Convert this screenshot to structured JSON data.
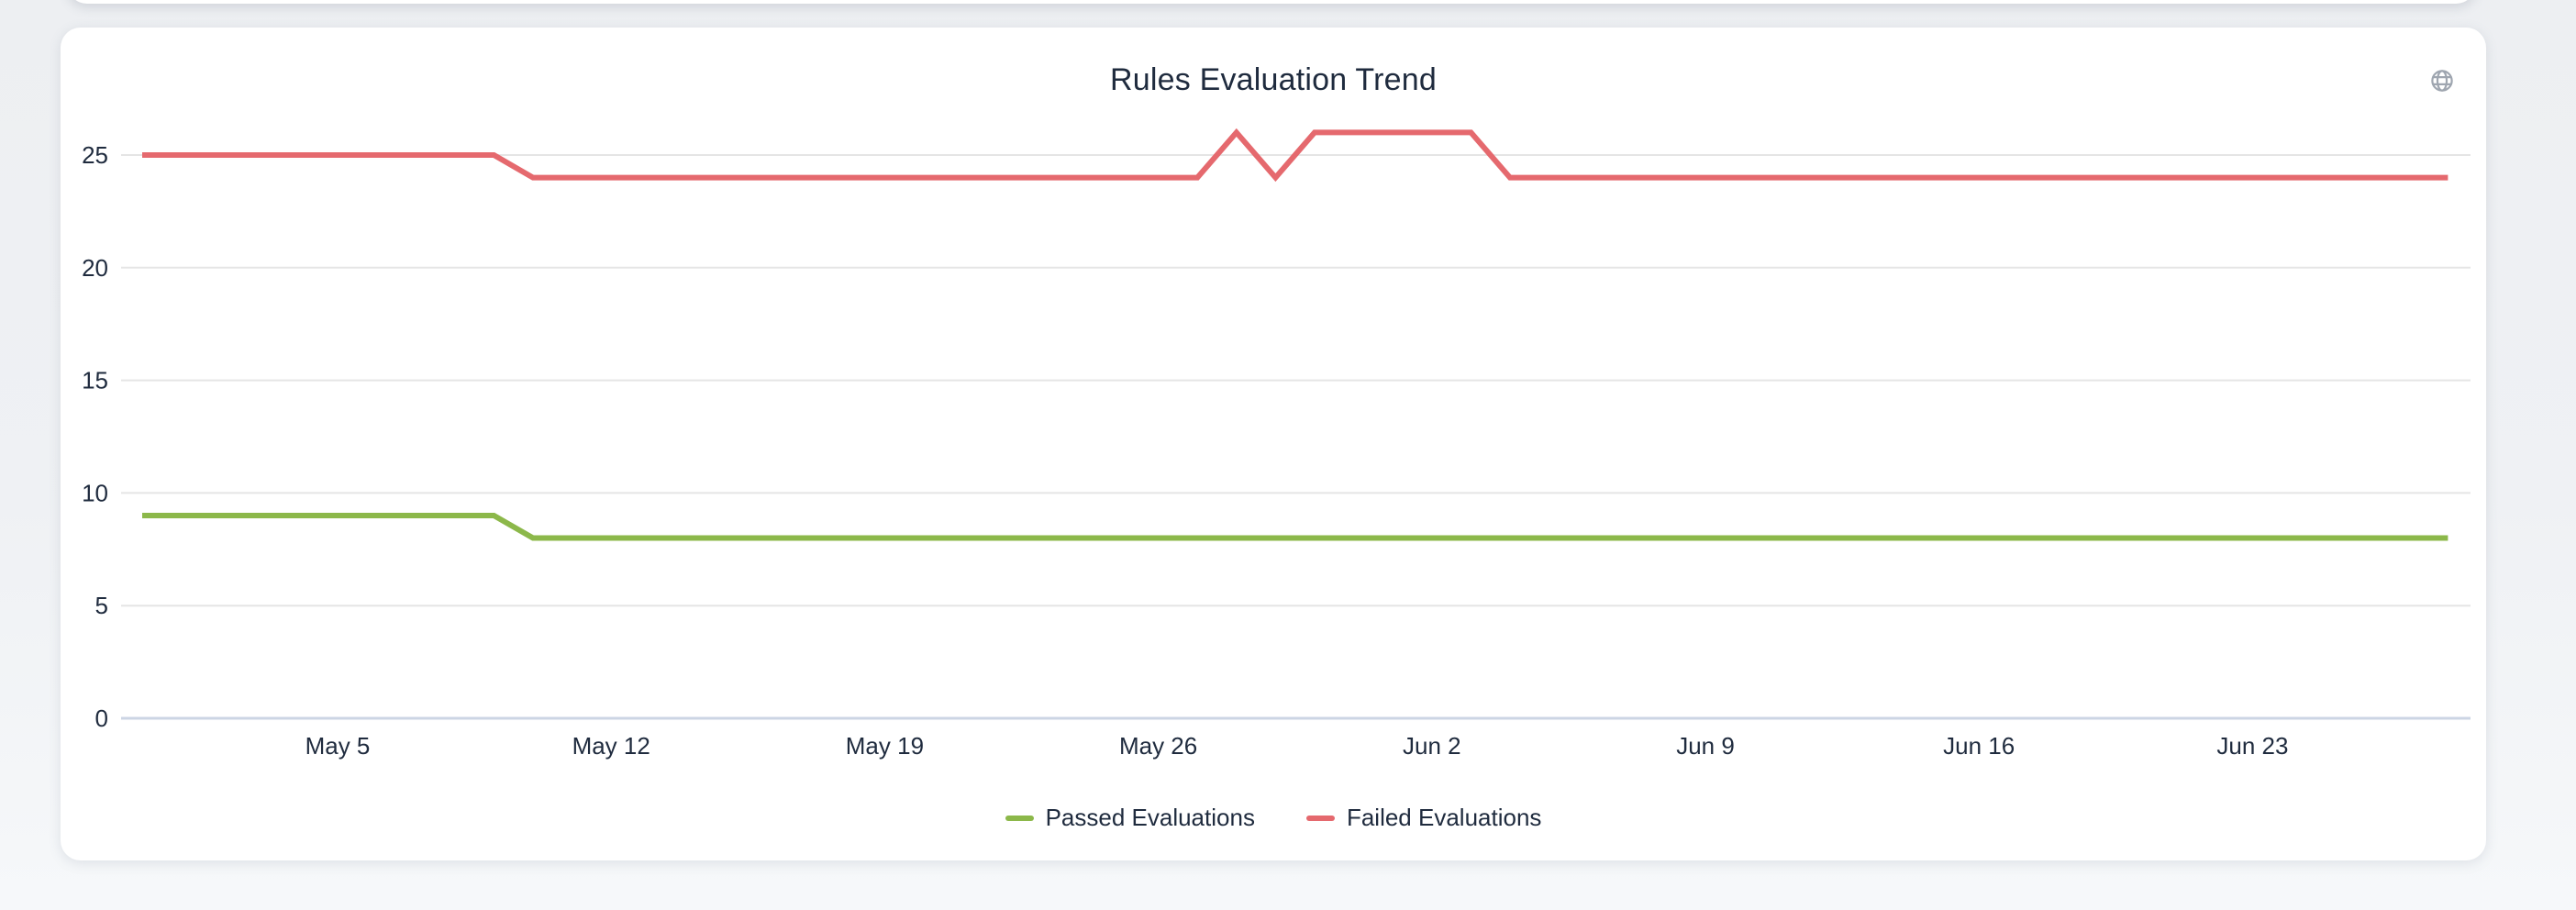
{
  "card": {
    "action_icon": "globe-icon",
    "action_icon_color": "#9aa2ac"
  },
  "chart_data": {
    "type": "line",
    "title": "Rules Evaluation Trend",
    "xlabel": "",
    "ylabel": "",
    "ylim": [
      0,
      26.6
    ],
    "grid": "horizontal",
    "legend_position": "bottom",
    "x": [
      "Apr 30",
      "May 1",
      "May 2",
      "May 3",
      "May 4",
      "May 5",
      "May 6",
      "May 7",
      "May 8",
      "May 9",
      "May 10",
      "May 11",
      "May 12",
      "May 13",
      "May 14",
      "May 15",
      "May 16",
      "May 17",
      "May 18",
      "May 19",
      "May 20",
      "May 21",
      "May 22",
      "May 23",
      "May 24",
      "May 25",
      "May 26",
      "May 27",
      "May 28",
      "May 29",
      "May 30",
      "May 31",
      "Jun 1",
      "Jun 2",
      "Jun 3",
      "Jun 4",
      "Jun 5",
      "Jun 6",
      "Jun 7",
      "Jun 8",
      "Jun 9",
      "Jun 10",
      "Jun 11",
      "Jun 12",
      "Jun 13",
      "Jun 14",
      "Jun 15",
      "Jun 16",
      "Jun 17",
      "Jun 18",
      "Jun 19",
      "Jun 20",
      "Jun 21",
      "Jun 22",
      "Jun 23",
      "Jun 24",
      "Jun 25",
      "Jun 26",
      "Jun 27",
      "Jun 28"
    ],
    "x_ticks": [
      "May 5",
      "May 12",
      "May 19",
      "May 26",
      "Jun 2",
      "Jun 9",
      "Jun 16",
      "Jun 23"
    ],
    "y_ticks": [
      0,
      5,
      10,
      15,
      20,
      25
    ],
    "series": [
      {
        "name": "Passed Evaluations",
        "color": "#8cb84a",
        "values": [
          9,
          9,
          9,
          9,
          9,
          9,
          9,
          9,
          9,
          9,
          8,
          8,
          8,
          8,
          8,
          8,
          8,
          8,
          8,
          8,
          8,
          8,
          8,
          8,
          8,
          8,
          8,
          8,
          8,
          8,
          8,
          8,
          8,
          8,
          8,
          8,
          8,
          8,
          8,
          8,
          8,
          8,
          8,
          8,
          8,
          8,
          8,
          8,
          8,
          8,
          8,
          8,
          8,
          8,
          8,
          8,
          8,
          8,
          8,
          8
        ]
      },
      {
        "name": "Failed Evaluations",
        "color": "#e5696e",
        "values": [
          25,
          25,
          25,
          25,
          25,
          25,
          25,
          25,
          25,
          25,
          24,
          24,
          24,
          24,
          24,
          24,
          24,
          24,
          24,
          24,
          24,
          24,
          24,
          24,
          24,
          24,
          24,
          24,
          26,
          24,
          26,
          26,
          26,
          26,
          26,
          24,
          24,
          24,
          24,
          24,
          24,
          24,
          24,
          24,
          24,
          24,
          24,
          24,
          24,
          24,
          24,
          24,
          24,
          24,
          24,
          24,
          24,
          24,
          24,
          24
        ]
      }
    ],
    "axis_style": {
      "grid_color": "#e5e5e5",
      "baseline_color": "#ccd5e4",
      "label_color": "#1f2b3e"
    }
  }
}
